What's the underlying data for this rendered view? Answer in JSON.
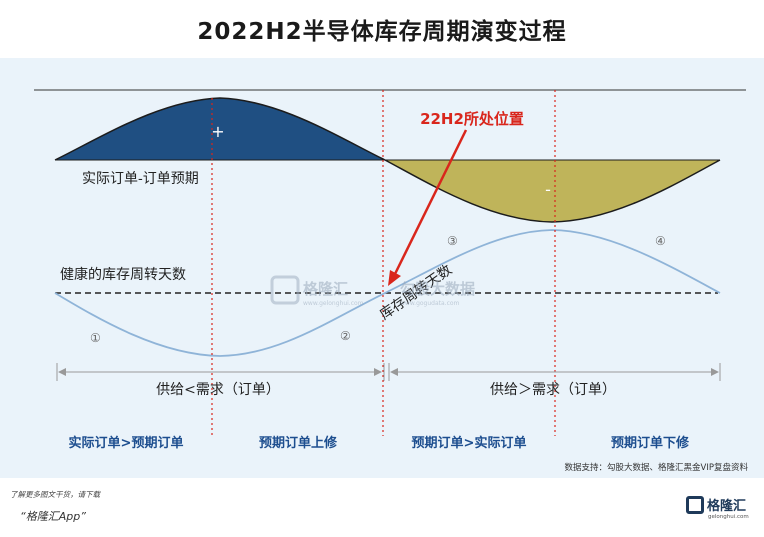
{
  "title": "2022H2半导体库存周期演变过程",
  "annotation": "22H2所处位置",
  "top_curve_label": "实际订单-订单预期",
  "plus_sign": "+",
  "minus_sign": "-",
  "baseline_label": "健康的库存周转天数",
  "inventory_curve_label": "库存周转天数",
  "phase_numbers": [
    "①",
    "②",
    "③",
    "④"
  ],
  "supply_left": "供给<需求（订单）",
  "supply_right": "供给＞需求（订单）",
  "phases": [
    "实际订单>预期订单",
    "预期订单上修",
    "预期订单>实际订单",
    "预期订单下修"
  ],
  "source": "数据支持：勾股大数据、格隆汇黑金VIP复盘资料",
  "watermark_brand": "格隆汇",
  "watermark_url": "www.gelonghui.com",
  "watermark_brand2": "勾股大数据",
  "watermark_url2": "www.gogudata.com",
  "footer_text": "了解更多图文干货，请下载",
  "footer_app": "“格隆汇App”",
  "logo_text": "格隆汇",
  "logo_sub": "gelonghui.com",
  "colors": {
    "positive": "#1f4f82",
    "negative": "#bfb45a",
    "red": "#d9261c",
    "curve": "#8fb4d8"
  }
}
